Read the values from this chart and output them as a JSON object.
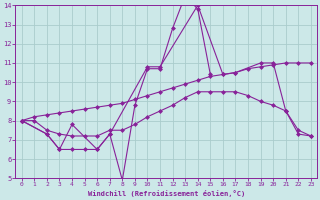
{
  "background_color": "#cce8e8",
  "grid_color": "#aacccc",
  "line_color": "#882299",
  "marker": "D",
  "marker_size": 2.5,
  "linewidth": 0.8,
  "xlabel": "Windchill (Refroidissement éolien,°C)",
  "xlim": [
    -0.5,
    23.5
  ],
  "ylim": [
    5,
    14
  ],
  "yticks": [
    5,
    6,
    7,
    8,
    9,
    10,
    11,
    12,
    13,
    14
  ],
  "xticks": [
    0,
    1,
    2,
    3,
    4,
    5,
    6,
    7,
    8,
    9,
    10,
    11,
    12,
    13,
    14,
    15,
    16,
    17,
    18,
    19,
    20,
    21,
    22,
    23
  ],
  "series": [
    {
      "x": [
        0,
        2,
        3,
        4,
        5,
        6,
        7,
        8,
        9,
        10,
        11,
        12,
        13,
        14,
        15
      ],
      "y": [
        8.0,
        7.3,
        6.5,
        6.5,
        6.5,
        6.5,
        7.3,
        4.9,
        8.8,
        10.7,
        10.7,
        12.8,
        14.5,
        13.8,
        10.4
      ]
    },
    {
      "x": [
        0,
        2,
        3,
        4,
        6,
        7,
        10,
        11,
        14,
        16,
        17,
        19,
        20,
        21,
        22,
        23
      ],
      "y": [
        8.0,
        7.3,
        6.5,
        7.8,
        6.5,
        7.3,
        10.8,
        10.8,
        14.0,
        10.4,
        10.5,
        11.0,
        11.0,
        8.5,
        7.3,
        7.2
      ]
    },
    {
      "x": [
        0,
        1,
        2,
        3,
        4,
        5,
        6,
        7,
        8,
        9,
        10,
        11,
        12,
        13,
        14,
        15,
        16,
        17,
        18,
        19,
        20,
        21,
        22,
        23
      ],
      "y": [
        8.0,
        8.0,
        7.5,
        7.3,
        7.2,
        7.2,
        7.2,
        7.5,
        7.5,
        7.8,
        8.2,
        8.5,
        8.8,
        9.2,
        9.5,
        9.5,
        9.5,
        9.5,
        9.3,
        9.0,
        8.8,
        8.5,
        7.5,
        7.2
      ]
    },
    {
      "x": [
        0,
        1,
        2,
        3,
        4,
        5,
        6,
        7,
        8,
        9,
        10,
        11,
        12,
        13,
        14,
        15,
        16,
        17,
        18,
        19,
        20,
        21,
        22,
        23
      ],
      "y": [
        8.0,
        8.2,
        8.3,
        8.4,
        8.5,
        8.6,
        8.7,
        8.8,
        8.9,
        9.1,
        9.3,
        9.5,
        9.7,
        9.9,
        10.1,
        10.3,
        10.4,
        10.5,
        10.7,
        10.8,
        10.9,
        11.0,
        11.0,
        11.0
      ]
    }
  ]
}
